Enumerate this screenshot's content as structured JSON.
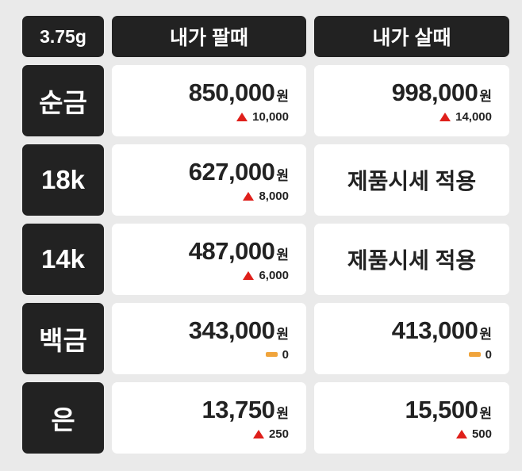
{
  "header": {
    "unit": "3.75g",
    "sell": "내가 팔때",
    "buy": "내가 살때"
  },
  "colors": {
    "up": "#df1f1a",
    "flat": "#f0a43c",
    "dark": "#222222",
    "background": "#eaeaea",
    "cell": "#ffffff"
  },
  "icons": {
    "up": "up-triangle-icon",
    "flat": "flat-dash-icon"
  },
  "rows": [
    {
      "label": "순금",
      "sell": {
        "price": "850,000",
        "unit": "원",
        "change": "10,000",
        "direction": "up"
      },
      "buy": {
        "price": "998,000",
        "unit": "원",
        "change": "14,000",
        "direction": "up"
      }
    },
    {
      "label": "18k",
      "sell": {
        "price": "627,000",
        "unit": "원",
        "change": "8,000",
        "direction": "up"
      },
      "buy": {
        "text": "제품시세 적용"
      }
    },
    {
      "label": "14k",
      "sell": {
        "price": "487,000",
        "unit": "원",
        "change": "6,000",
        "direction": "up"
      },
      "buy": {
        "text": "제품시세 적용"
      }
    },
    {
      "label": "백금",
      "sell": {
        "price": "343,000",
        "unit": "원",
        "change": "0",
        "direction": "flat"
      },
      "buy": {
        "price": "413,000",
        "unit": "원",
        "change": "0",
        "direction": "flat"
      }
    },
    {
      "label": "은",
      "sell": {
        "price": "13,750",
        "unit": "원",
        "change": "250",
        "direction": "up"
      },
      "buy": {
        "price": "15,500",
        "unit": "원",
        "change": "500",
        "direction": "up"
      }
    }
  ]
}
